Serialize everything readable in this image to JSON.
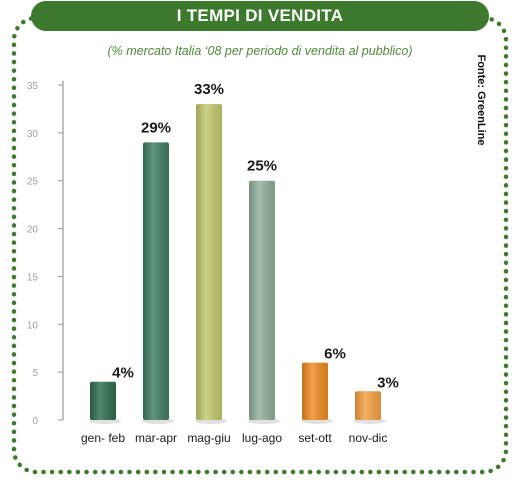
{
  "title": "I TEMPI DI VENDITA",
  "subtitle": "(% mercato Italia ‘08 per periodo di vendita al pubblico)",
  "source": "Fonte: GreenLine",
  "colors": {
    "frame_dots": "#3d7a2e",
    "title_bg": "#3d7a2e",
    "subtitle": "#4e8a3a"
  },
  "chart_data": {
    "type": "bar",
    "categories": [
      "gen- feb",
      "mar-apr",
      "mag-giu",
      "lug-ago",
      "set-ott",
      "nov-dic"
    ],
    "values": [
      4,
      29,
      33,
      25,
      6,
      3
    ],
    "data_labels": [
      "4%",
      "29%",
      "33%",
      "25%",
      "6%",
      "3%"
    ],
    "bar_colors": [
      "#2e6e50",
      "#3f7d60",
      "#c3c86c",
      "#8fb09a",
      "#ee8a22",
      "#f5a040"
    ],
    "y_ticks": [
      "0",
      "5",
      "10",
      "15",
      "20",
      "25",
      "30",
      "35"
    ],
    "ylim": [
      0,
      35
    ],
    "grid": false
  }
}
